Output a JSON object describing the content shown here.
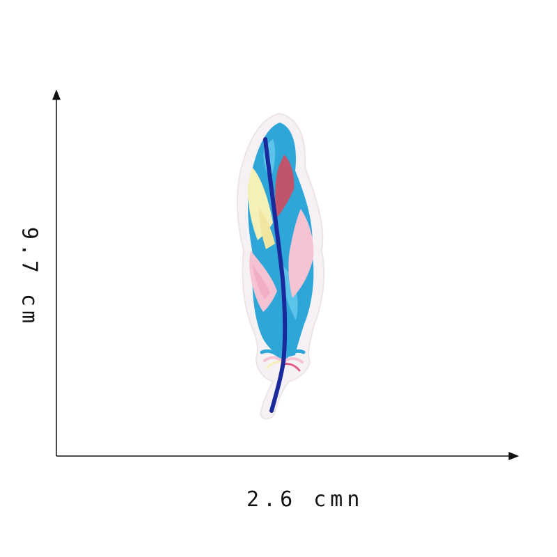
{
  "measurements": {
    "width_label": "2.6 cmn",
    "height_label": "9.7 cm"
  },
  "subject": {
    "icon": "feather-patch-icon",
    "colors": {
      "backing": "#f4f0f2",
      "blue": "#2fa6d8",
      "light_blue": "#5cc3ea",
      "navy": "#1a2a9c",
      "pink": "#f6c3d3",
      "yellow": "#f5efb8",
      "rose": "#c0546a"
    }
  },
  "axes": {
    "color": "#111111"
  }
}
